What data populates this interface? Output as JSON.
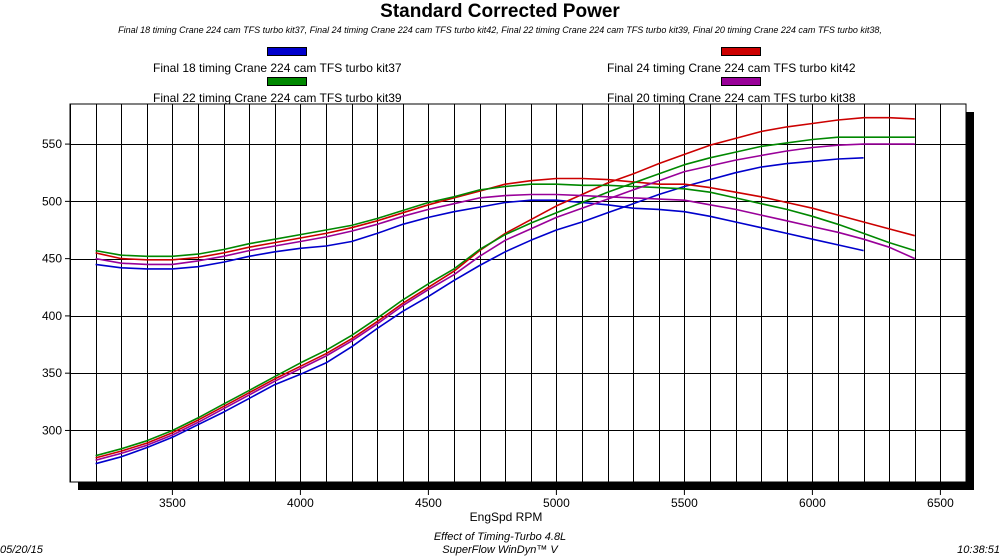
{
  "header": {
    "title": "Standard Corrected Power",
    "subtitle": "Final 18 timing Crane 224 cam  TFS turbo kit37, Final 24 timing Crane 224 cam  TFS turbo kit42, Final 22 timing Crane 224 cam  TFS turbo kit39, Final 20 timing Crane 224 cam  TFS turbo kit38,"
  },
  "legend": {
    "items": [
      {
        "label": "Final 18 timing Crane 224 cam TFS turbo kit37",
        "color": "#0000cc"
      },
      {
        "label": "Final 24 timing Crane 224 cam TFS turbo kit42",
        "color": "#cc0000"
      },
      {
        "label": "Final 22 timing Crane 224 cam TFS turbo kit39",
        "color": "#008800"
      },
      {
        "label": "Final 20 timing Crane 224 cam TFS turbo kit38",
        "color": "#990099"
      }
    ]
  },
  "footer": {
    "date": "05/20/15",
    "caption": "Effect of Timing-Turbo 4.8L",
    "software": "SuperFlow WinDyn™ V",
    "time": "10:38:51"
  },
  "chart_data": {
    "type": "line",
    "title": "Standard Corrected Power",
    "xlabel": "EngSpd RPM",
    "ylabel": "",
    "xlim": [
      3100,
      6600
    ],
    "ylim": [
      255,
      585
    ],
    "x_ticks": [
      3500,
      4000,
      4500,
      5000,
      5500,
      6000,
      6500
    ],
    "y_ticks": [
      300,
      350,
      400,
      450,
      500,
      550
    ],
    "grid": true,
    "series": [
      {
        "name": "Final 18 timing Crane 224 cam TFS turbo kit37",
        "quantity": "torque",
        "color": "#0000cc",
        "x": [
          3200,
          3300,
          3400,
          3500,
          3600,
          3700,
          3800,
          3900,
          4000,
          4100,
          4200,
          4300,
          4400,
          4500,
          4600,
          4700,
          4800,
          4900,
          5000,
          5100,
          5200,
          5300,
          5400,
          5500,
          5600,
          5700,
          5800,
          5900,
          6000,
          6100,
          6200
        ],
        "values": [
          445,
          442,
          441,
          441,
          443,
          447,
          452,
          456,
          459,
          461,
          465,
          472,
          480,
          486,
          491,
          495,
          499,
          501,
          501,
          499,
          497,
          494,
          493,
          491,
          487,
          482,
          477,
          472,
          467,
          462,
          457
        ]
      },
      {
        "name": "Final 18 timing Crane 224 cam TFS turbo kit37",
        "quantity": "power",
        "color": "#0000cc",
        "x": [
          3200,
          3300,
          3400,
          3500,
          3600,
          3700,
          3800,
          3900,
          4000,
          4100,
          4200,
          4300,
          4400,
          4500,
          4600,
          4700,
          4800,
          4900,
          5000,
          5100,
          5200,
          5300,
          5400,
          5500,
          5600,
          5700,
          5800,
          5900,
          6000,
          6100,
          6200
        ],
        "values": [
          271,
          277,
          285,
          294,
          305,
          316,
          328,
          340,
          349,
          359,
          373,
          389,
          404,
          417,
          431,
          444,
          456,
          466,
          475,
          482,
          490,
          498,
          506,
          513,
          519,
          525,
          530,
          533,
          535,
          537,
          538
        ]
      },
      {
        "name": "Final 24 timing Crane 224 cam TFS turbo kit42",
        "quantity": "torque",
        "color": "#cc0000",
        "x": [
          3200,
          3300,
          3400,
          3500,
          3600,
          3700,
          3800,
          3900,
          4000,
          4100,
          4200,
          4300,
          4400,
          4500,
          4600,
          4700,
          4800,
          4900,
          5000,
          5100,
          5200,
          5300,
          5400,
          5500,
          5600,
          5700,
          5800,
          5900,
          6000,
          6100,
          6200,
          6300,
          6400
        ],
        "values": [
          455,
          450,
          449,
          449,
          451,
          455,
          460,
          464,
          468,
          472,
          477,
          483,
          490,
          497,
          503,
          509,
          515,
          518,
          520,
          520,
          519,
          517,
          515,
          515,
          512,
          508,
          504,
          499,
          494,
          488,
          482,
          476,
          470
        ]
      },
      {
        "name": "Final 24 timing Crane 224 cam TFS turbo kit42",
        "quantity": "power",
        "color": "#cc0000",
        "x": [
          3200,
          3300,
          3400,
          3500,
          3600,
          3700,
          3800,
          3900,
          4000,
          4100,
          4200,
          4300,
          4400,
          4500,
          4600,
          4700,
          4800,
          4900,
          5000,
          5100,
          5200,
          5300,
          5400,
          5500,
          5600,
          5700,
          5800,
          5900,
          6000,
          6100,
          6200,
          6300,
          6400
        ],
        "values": [
          276,
          282,
          289,
          298,
          309,
          321,
          333,
          345,
          356,
          367,
          380,
          395,
          411,
          425,
          439,
          457,
          472,
          484,
          496,
          506,
          516,
          524,
          533,
          541,
          549,
          555,
          561,
          565,
          568,
          571,
          573,
          573,
          572
        ]
      },
      {
        "name": "Final 22 timing Crane 224 cam TFS turbo kit39",
        "quantity": "torque",
        "color": "#008800",
        "x": [
          3200,
          3300,
          3400,
          3500,
          3600,
          3700,
          3800,
          3900,
          4000,
          4100,
          4200,
          4300,
          4400,
          4500,
          4600,
          4700,
          4800,
          4900,
          5000,
          5100,
          5200,
          5300,
          5400,
          5500,
          5600,
          5700,
          5800,
          5900,
          6000,
          6100,
          6200,
          6300,
          6400
        ],
        "values": [
          457,
          453,
          452,
          452,
          454,
          458,
          463,
          467,
          471,
          475,
          479,
          485,
          492,
          499,
          504,
          510,
          513,
          515,
          515,
          514,
          514,
          513,
          512,
          511,
          508,
          503,
          498,
          493,
          487,
          480,
          472,
          464,
          457
        ]
      },
      {
        "name": "Final 22 timing Crane 224 cam TFS turbo kit39",
        "quantity": "power",
        "color": "#008800",
        "x": [
          3200,
          3300,
          3400,
          3500,
          3600,
          3700,
          3800,
          3900,
          4000,
          4100,
          4200,
          4300,
          4400,
          4500,
          4600,
          4700,
          4800,
          4900,
          5000,
          5100,
          5200,
          5300,
          5400,
          5500,
          5600,
          5700,
          5800,
          5900,
          6000,
          6100,
          6200,
          6300,
          6400
        ],
        "values": [
          278,
          284,
          291,
          300,
          311,
          323,
          335,
          347,
          359,
          370,
          383,
          398,
          414,
          428,
          441,
          458,
          471,
          481,
          490,
          499,
          508,
          516,
          524,
          532,
          538,
          543,
          548,
          551,
          554,
          556,
          556,
          556,
          556
        ]
      },
      {
        "name": "Final 20 timing Crane 224 cam TFS turbo kit38",
        "quantity": "torque",
        "color": "#990099",
        "x": [
          3200,
          3300,
          3400,
          3500,
          3600,
          3700,
          3800,
          3900,
          4000,
          4100,
          4200,
          4300,
          4400,
          4500,
          4600,
          4700,
          4800,
          4900,
          5000,
          5100,
          5200,
          5300,
          5400,
          5500,
          5600,
          5700,
          5800,
          5900,
          6000,
          6100,
          6200,
          6300,
          6400
        ],
        "values": [
          450,
          446,
          445,
          445,
          448,
          452,
          457,
          461,
          465,
          469,
          474,
          480,
          487,
          493,
          498,
          503,
          505,
          506,
          506,
          505,
          504,
          503,
          502,
          501,
          497,
          493,
          488,
          483,
          478,
          473,
          467,
          460,
          450
        ]
      },
      {
        "name": "Final 20 timing Crane 224 cam TFS turbo kit38",
        "quantity": "power",
        "color": "#990099",
        "x": [
          3200,
          3300,
          3400,
          3500,
          3600,
          3700,
          3800,
          3900,
          4000,
          4100,
          4200,
          4300,
          4400,
          4500,
          4600,
          4700,
          4800,
          4900,
          5000,
          5100,
          5200,
          5300,
          5400,
          5500,
          5600,
          5700,
          5800,
          5900,
          6000,
          6100,
          6200,
          6300,
          6400
        ],
        "values": [
          274,
          280,
          287,
          296,
          307,
          319,
          331,
          343,
          354,
          365,
          378,
          393,
          409,
          423,
          436,
          452,
          466,
          476,
          486,
          494,
          502,
          510,
          518,
          526,
          531,
          536,
          540,
          544,
          547,
          549,
          550,
          550,
          550
        ]
      }
    ]
  }
}
